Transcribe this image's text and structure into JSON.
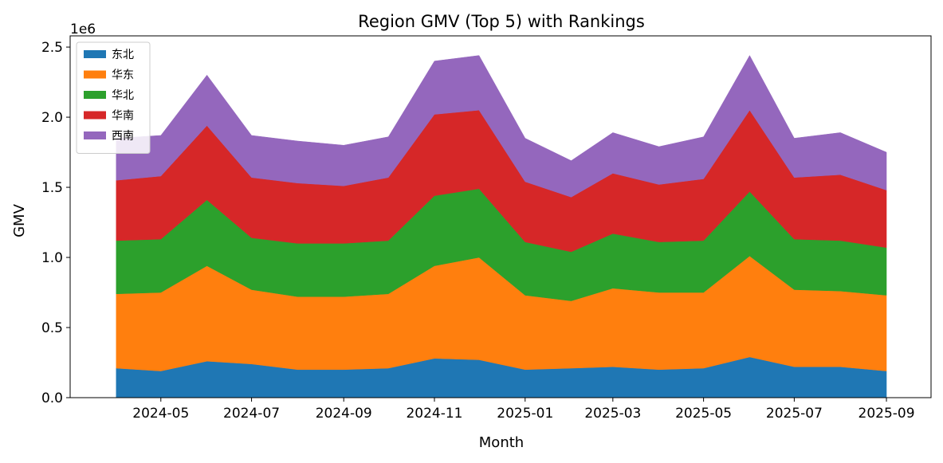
{
  "chart_data": {
    "type": "area",
    "stacked": true,
    "title": "Region GMV (Top 5) with Rankings",
    "xlabel": "Month",
    "ylabel": "GMV",
    "y_scale_label": "1e6",
    "y_unit": 1000000,
    "ylim": [
      0,
      2.58
    ],
    "yticks": [
      0.0,
      0.5,
      1.0,
      1.5,
      2.0,
      2.5
    ],
    "ytick_labels": [
      "0.0",
      "0.5",
      "1.0",
      "1.5",
      "2.0",
      "2.5"
    ],
    "xlim": [
      "2024-03-01",
      "2025-10-01"
    ],
    "xtick_labels": [
      "2024-05",
      "2024-07",
      "2024-09",
      "2024-11",
      "2025-01",
      "2025-03",
      "2025-05",
      "2025-07",
      "2025-09"
    ],
    "legend_position": "top-left",
    "grid": false,
    "x": [
      "2024-04-01",
      "2024-05-01",
      "2024-06-01",
      "2024-07-01",
      "2024-08-01",
      "2024-09-01",
      "2024-10-01",
      "2024-11-01",
      "2024-12-01",
      "2025-01-01",
      "2025-02-01",
      "2025-03-01",
      "2025-04-01",
      "2025-05-01",
      "2025-06-01",
      "2025-07-01",
      "2025-08-01",
      "2025-09-01"
    ],
    "series": [
      {
        "name": "东北",
        "color": "#1f77b4",
        "values": [
          0.21,
          0.19,
          0.26,
          0.24,
          0.2,
          0.2,
          0.21,
          0.28,
          0.27,
          0.2,
          0.21,
          0.22,
          0.2,
          0.21,
          0.29,
          0.22,
          0.22,
          0.19
        ]
      },
      {
        "name": "华东",
        "color": "#ff7f0e",
        "values": [
          0.53,
          0.56,
          0.68,
          0.53,
          0.52,
          0.52,
          0.53,
          0.66,
          0.73,
          0.53,
          0.48,
          0.56,
          0.55,
          0.54,
          0.72,
          0.55,
          0.54,
          0.54
        ]
      },
      {
        "name": "华北",
        "color": "#2ca02c",
        "values": [
          0.38,
          0.38,
          0.47,
          0.37,
          0.38,
          0.38,
          0.38,
          0.5,
          0.49,
          0.38,
          0.35,
          0.39,
          0.36,
          0.37,
          0.46,
          0.36,
          0.36,
          0.34
        ]
      },
      {
        "name": "华南",
        "color": "#d62728",
        "values": [
          0.43,
          0.45,
          0.53,
          0.43,
          0.43,
          0.41,
          0.45,
          0.58,
          0.56,
          0.43,
          0.39,
          0.43,
          0.41,
          0.44,
          0.58,
          0.44,
          0.47,
          0.41
        ]
      },
      {
        "name": "西南",
        "color": "#9467bd",
        "values": [
          0.3,
          0.29,
          0.36,
          0.3,
          0.3,
          0.29,
          0.29,
          0.38,
          0.39,
          0.31,
          0.26,
          0.29,
          0.27,
          0.3,
          0.39,
          0.28,
          0.3,
          0.27
        ]
      }
    ]
  }
}
